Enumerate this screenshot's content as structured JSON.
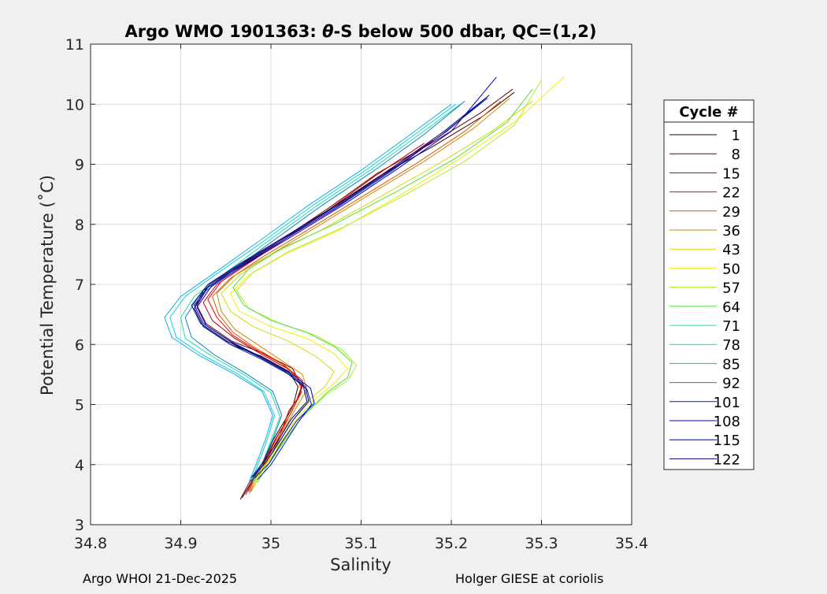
{
  "chart_data": {
    "type": "line",
    "title_prefix": "Argo WMO 1901363: ",
    "title_symbol": "θ",
    "title_suffix": "-S below 500 dbar,  QC=(1,2)",
    "xlabel": "Salinity",
    "ylabel": "Potential Temperature (˚C)",
    "xlim": [
      34.8,
      35.4
    ],
    "ylim": [
      3,
      11
    ],
    "x_ticks": [
      34.8,
      34.9,
      35.0,
      35.1,
      35.2,
      35.3,
      35.4
    ],
    "x_tick_labels": [
      "34.8",
      "34.9",
      "35",
      "35.1",
      "35.2",
      "35.3",
      "35.4"
    ],
    "y_ticks": [
      3,
      4,
      5,
      6,
      7,
      8,
      9,
      10,
      11
    ],
    "y_tick_labels": [
      "3",
      "4",
      "5",
      "6",
      "7",
      "8",
      "9",
      "10",
      "11"
    ],
    "grid": true,
    "legend_title": "Cycle #",
    "legend_position": "right",
    "series": [
      {
        "name": "1",
        "color": "#2a0000",
        "S": [
          34.968,
          34.978,
          34.99,
          35.002,
          35.018,
          35.025,
          35.03,
          35.02,
          34.99,
          34.955,
          34.925,
          34.915,
          34.925,
          34.955,
          35.0,
          35.06,
          35.12,
          35.18,
          35.235,
          35.27
        ],
        "T": [
          3.45,
          3.7,
          4.0,
          4.4,
          4.8,
          5.0,
          5.3,
          5.55,
          5.8,
          6.0,
          6.3,
          6.6,
          6.9,
          7.2,
          7.6,
          8.2,
          8.8,
          9.3,
          9.8,
          10.2
        ]
      },
      {
        "name": "8",
        "color": "#700000",
        "S": [
          34.966,
          34.976,
          34.99,
          35.004,
          35.02,
          35.028,
          35.034,
          35.024,
          34.992,
          34.957,
          34.928,
          34.918,
          34.93,
          34.958,
          35.002,
          35.062,
          35.118,
          35.178,
          35.232,
          35.268
        ],
        "T": [
          3.42,
          3.7,
          4.0,
          4.4,
          4.8,
          5.05,
          5.3,
          5.6,
          5.85,
          6.05,
          6.35,
          6.65,
          6.95,
          7.25,
          7.65,
          8.25,
          8.85,
          9.35,
          9.85,
          10.25
        ]
      },
      {
        "name": "15",
        "color": "#b80000",
        "S": [
          34.972,
          34.982,
          34.995,
          35.008,
          35.022,
          35.03,
          35.036,
          35.018,
          34.988,
          34.96,
          34.935,
          34.925,
          34.94,
          34.97,
          35.01,
          35.06,
          35.115,
          35.17
        ],
        "T": [
          3.5,
          3.8,
          4.1,
          4.5,
          4.85,
          5.1,
          5.35,
          5.6,
          5.85,
          6.1,
          6.4,
          6.7,
          7.0,
          7.3,
          7.7,
          8.2,
          8.8,
          9.35
        ]
      },
      {
        "name": "22",
        "color": "#f00000",
        "S": [
          34.975,
          34.985,
          34.998,
          35.01,
          35.02,
          35.032,
          35.035,
          35.015,
          34.985,
          34.958,
          34.94,
          34.93,
          34.945,
          34.975,
          35.015,
          35.07,
          35.125,
          35.18
        ],
        "T": [
          3.55,
          3.85,
          4.15,
          4.5,
          4.9,
          5.15,
          5.4,
          5.65,
          5.9,
          6.15,
          6.45,
          6.75,
          7.05,
          7.35,
          7.75,
          8.25,
          8.85,
          9.4
        ]
      },
      {
        "name": "29",
        "color": "#e05000",
        "S": [
          34.976,
          34.986,
          35.0,
          35.012,
          35.025,
          35.034,
          35.03,
          35.01,
          34.982,
          34.958,
          34.942,
          34.935,
          34.955,
          34.99,
          35.04,
          35.1,
          35.16,
          35.215,
          35.255
        ],
        "T": [
          3.52,
          3.85,
          4.15,
          4.55,
          4.95,
          5.2,
          5.45,
          5.7,
          5.95,
          6.2,
          6.5,
          6.8,
          7.1,
          7.45,
          7.9,
          8.45,
          9.0,
          9.55,
          10.05
        ]
      },
      {
        "name": "36",
        "color": "#c89000",
        "S": [
          34.978,
          34.988,
          35.002,
          35.015,
          35.03,
          35.04,
          35.035,
          35.01,
          34.985,
          34.96,
          34.945,
          34.94,
          34.96,
          35.0,
          35.05,
          35.11,
          35.17,
          35.225,
          35.265
        ],
        "T": [
          3.55,
          3.85,
          4.2,
          4.6,
          5.0,
          5.25,
          5.5,
          5.75,
          6.0,
          6.25,
          6.55,
          6.85,
          7.15,
          7.5,
          7.95,
          8.5,
          9.05,
          9.6,
          10.1
        ]
      },
      {
        "name": "43",
        "color": "#d8d800",
        "S": [
          34.98,
          34.99,
          35.005,
          35.02,
          35.04,
          35.06,
          35.07,
          35.05,
          35.02,
          34.98,
          34.955,
          34.945,
          34.965,
          35.0,
          35.055,
          35.12,
          35.185,
          35.245,
          35.29
        ],
        "T": [
          3.6,
          3.9,
          4.25,
          4.65,
          5.05,
          5.3,
          5.55,
          5.8,
          6.05,
          6.3,
          6.55,
          6.85,
          7.15,
          7.5,
          7.9,
          8.45,
          9.0,
          9.55,
          10.05
        ]
      },
      {
        "name": "50",
        "color": "#f0f000",
        "S": [
          34.98,
          34.99,
          35.008,
          35.025,
          35.05,
          35.07,
          35.085,
          35.07,
          35.04,
          35.0,
          34.965,
          34.955,
          34.975,
          35.015,
          35.075,
          35.145,
          35.21,
          35.27,
          35.325
        ],
        "T": [
          3.65,
          3.95,
          4.3,
          4.7,
          5.1,
          5.35,
          5.6,
          5.85,
          6.1,
          6.3,
          6.55,
          6.85,
          7.15,
          7.5,
          7.9,
          8.5,
          9.1,
          9.7,
          10.45
        ]
      },
      {
        "name": "57",
        "color": "#b0ee20",
        "S": [
          34.982,
          34.994,
          35.012,
          35.032,
          35.06,
          35.085,
          35.095,
          35.08,
          35.05,
          35.01,
          34.975,
          34.962,
          34.98,
          35.02,
          35.08,
          35.15,
          35.215,
          35.27,
          35.3
        ],
        "T": [
          3.68,
          3.98,
          4.35,
          4.75,
          5.15,
          5.4,
          5.65,
          5.9,
          6.15,
          6.35,
          6.6,
          6.9,
          7.2,
          7.55,
          7.95,
          8.5,
          9.05,
          9.65,
          10.4
        ]
      },
      {
        "name": "64",
        "color": "#50e040",
        "S": [
          34.985,
          34.997,
          35.015,
          35.035,
          35.062,
          35.085,
          35.09,
          35.072,
          35.04,
          35.0,
          34.97,
          34.958,
          34.975,
          35.012,
          35.07,
          35.14,
          35.205,
          35.262,
          35.29
        ],
        "T": [
          3.7,
          4.0,
          4.4,
          4.8,
          5.2,
          5.45,
          5.7,
          5.95,
          6.2,
          6.4,
          6.65,
          6.95,
          7.25,
          7.6,
          8.0,
          8.55,
          9.1,
          9.7,
          10.25
        ]
      },
      {
        "name": "71",
        "color": "#20e0a0",
        "S": [
          34.98,
          34.99,
          35.0,
          35.01,
          35.0,
          34.97,
          34.935,
          34.905,
          34.9,
          34.915,
          34.95,
          34.995,
          35.05,
          35.11,
          35.165,
          35.21
        ],
        "T": [
          3.7,
          4.0,
          4.4,
          4.8,
          5.2,
          5.5,
          5.8,
          6.1,
          6.45,
          6.8,
          7.2,
          7.7,
          8.3,
          8.9,
          9.5,
          10.0
        ]
      },
      {
        "name": "78",
        "color": "#10d0e0",
        "S": [
          34.978,
          34.986,
          34.996,
          35.004,
          34.992,
          34.962,
          34.925,
          34.895,
          34.888,
          34.905,
          34.942,
          34.99,
          35.045,
          35.105,
          35.16,
          35.205
        ],
        "T": [
          3.72,
          4.02,
          4.42,
          4.82,
          5.22,
          5.52,
          5.82,
          6.12,
          6.45,
          6.8,
          7.2,
          7.7,
          8.3,
          8.9,
          9.5,
          10.0
        ]
      },
      {
        "name": "85",
        "color": "#10b0e0",
        "S": [
          34.976,
          34.984,
          34.994,
          35.002,
          34.99,
          34.958,
          34.92,
          34.89,
          34.882,
          34.9,
          34.938,
          34.985,
          35.04,
          35.1,
          35.155,
          35.2
        ],
        "T": [
          3.72,
          4.02,
          4.42,
          4.82,
          5.22,
          5.52,
          5.82,
          6.12,
          6.45,
          6.8,
          7.2,
          7.7,
          8.3,
          8.9,
          9.5,
          10.0
        ]
      },
      {
        "name": "92",
        "color": "#1080c8",
        "S": [
          34.978,
          34.99,
          35.002,
          35.012,
          35.002,
          34.972,
          34.938,
          34.912,
          34.905,
          34.92,
          34.955,
          35.0,
          35.055,
          35.115,
          35.17,
          35.215
        ],
        "T": [
          3.72,
          4.02,
          4.42,
          4.82,
          5.22,
          5.52,
          5.82,
          6.12,
          6.45,
          6.8,
          7.2,
          7.7,
          8.3,
          8.9,
          9.5,
          10.05
        ]
      },
      {
        "name": "101",
        "color": "#0020b8",
        "S": [
          34.985,
          35.0,
          35.015,
          35.03,
          35.045,
          35.04,
          35.02,
          34.99,
          34.955,
          34.925,
          34.915,
          34.93,
          34.965,
          35.015,
          35.075,
          35.135,
          35.19,
          35.24
        ],
        "T": [
          3.75,
          4.0,
          4.35,
          4.7,
          5.0,
          5.25,
          5.5,
          5.75,
          6.0,
          6.3,
          6.6,
          6.95,
          7.3,
          7.75,
          8.3,
          8.9,
          9.5,
          10.1
        ]
      },
      {
        "name": "108",
        "color": "#0000d0",
        "S": [
          34.982,
          34.998,
          35.012,
          35.028,
          35.048,
          35.044,
          35.022,
          34.992,
          34.958,
          34.928,
          34.918,
          34.934,
          34.97,
          35.02,
          35.08,
          35.14,
          35.2,
          35.25
        ],
        "T": [
          3.78,
          4.02,
          4.37,
          4.72,
          5.02,
          5.27,
          5.52,
          5.77,
          6.02,
          6.32,
          6.62,
          6.97,
          7.32,
          7.77,
          8.32,
          8.92,
          9.55,
          10.45
        ]
      },
      {
        "name": "115",
        "color": "#000090",
        "S": [
          34.98,
          34.995,
          35.01,
          35.025,
          35.042,
          35.038,
          35.018,
          34.988,
          34.955,
          34.925,
          34.915,
          34.932,
          34.968,
          35.018,
          35.078,
          35.138,
          35.195,
          35.242
        ],
        "T": [
          3.8,
          4.05,
          4.4,
          4.75,
          5.05,
          5.3,
          5.55,
          5.8,
          6.05,
          6.35,
          6.65,
          7.0,
          7.35,
          7.8,
          8.35,
          8.95,
          9.55,
          10.15
        ]
      },
      {
        "name": "122",
        "color": "#000070",
        "S": [
          34.978,
          34.992,
          35.008,
          35.022,
          35.04,
          35.036,
          35.016,
          34.986,
          34.952,
          34.922,
          34.912,
          34.93,
          34.966,
          35.016,
          35.076,
          35.136,
          35.192,
          35.238
        ],
        "T": [
          3.78,
          4.05,
          4.4,
          4.75,
          5.05,
          5.3,
          5.55,
          5.8,
          6.05,
          6.35,
          6.65,
          7.0,
          7.35,
          7.8,
          8.35,
          8.95,
          9.55,
          10.1
        ]
      }
    ]
  },
  "footer": {
    "left": "Argo WHOI 21-Dec-2025",
    "right": "Holger GIESE at coriolis"
  }
}
